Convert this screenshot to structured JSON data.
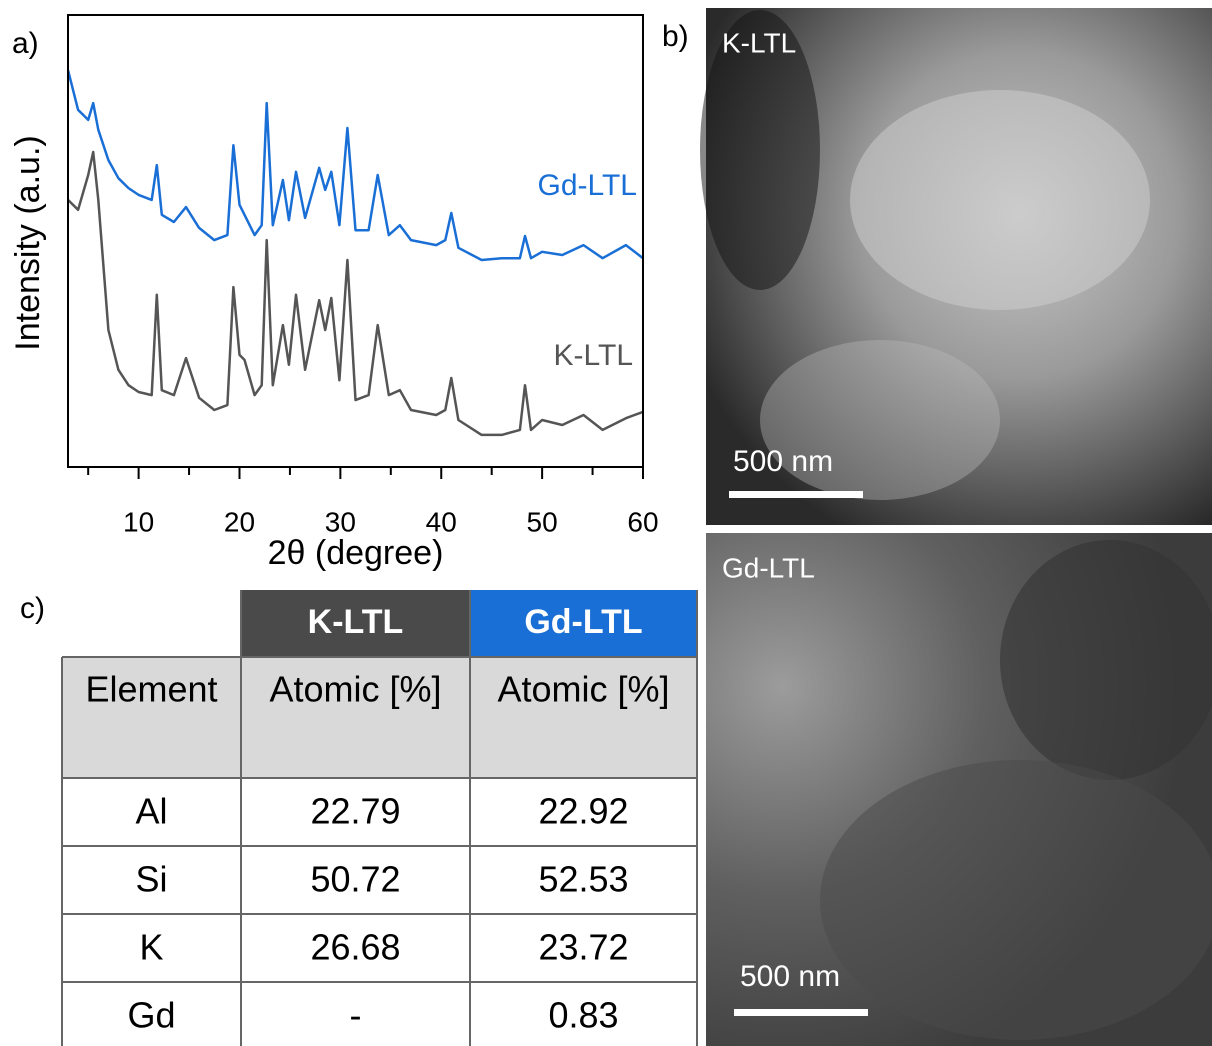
{
  "panels": {
    "a": "a)",
    "b": "b)",
    "c": "c)"
  },
  "chart_data": {
    "type": "line",
    "x_label": "2θ (degree)",
    "y_label": "Intensity (a.u.)",
    "x": [
      3,
      4,
      5,
      5.5,
      6,
      7,
      8,
      9,
      10,
      11.3,
      11.8,
      12.3,
      13.5,
      14.7,
      16,
      17.5,
      18.8,
      19.4,
      20,
      20.5,
      21.5,
      22.2,
      22.7,
      23.3,
      24.3,
      24.9,
      25.6,
      26.5,
      27.9,
      28.5,
      29.1,
      29.9,
      30.7,
      31.5,
      32.8,
      33.7,
      34.8,
      35.9,
      37,
      39.5,
      40.4,
      41,
      41.7,
      44,
      46,
      47.8,
      48.3,
      48.9,
      50,
      52,
      54.1,
      56,
      58.3,
      60
    ],
    "series": [
      {
        "name": "Gd-LTL",
        "color": "#1a6fd6",
        "values": [
          87.8,
          79.0,
          76.8,
          80.5,
          74.6,
          67.9,
          63.9,
          61.7,
          60.2,
          59.1,
          66.8,
          55.8,
          54.2,
          57.5,
          52.9,
          50.2,
          51.3,
          71.2,
          58.0,
          55.8,
          51.3,
          53.5,
          80.5,
          53.5,
          63.5,
          54.6,
          65.3,
          55.1,
          66.2,
          61.3,
          65.3,
          53.5,
          75.0,
          52.4,
          52.4,
          64.6,
          51.3,
          53.5,
          50.2,
          49.1,
          50.2,
          56.2,
          48.5,
          45.8,
          46.2,
          46.2,
          51.1,
          46.2,
          47.6,
          46.9,
          49.1,
          46.2,
          49.1,
          46.2
        ]
      },
      {
        "name": "K-LTL",
        "color": "#555555",
        "values": [
          59.1,
          56.9,
          64.6,
          69.7,
          59.1,
          30.3,
          21.5,
          18.1,
          16.6,
          15.9,
          38.1,
          17.0,
          15.9,
          24.1,
          15.3,
          12.6,
          13.7,
          39.8,
          24.8,
          23.7,
          15.9,
          18.1,
          50.2,
          18.1,
          31.4,
          22.6,
          38.1,
          21.5,
          36.9,
          30.3,
          37.4,
          19.2,
          45.8,
          14.8,
          15.9,
          31.4,
          15.9,
          17.0,
          12.6,
          11.5,
          12.6,
          19.7,
          10.4,
          7.1,
          7.1,
          8.2,
          18.1,
          8.2,
          10.4,
          9.3,
          11.5,
          8.2,
          10.8,
          12.2
        ]
      }
    ],
    "xlim": [
      3,
      60
    ],
    "xticks": [
      10,
      20,
      30,
      40,
      50,
      60
    ],
    "xminor_ticks": [
      5,
      15,
      25,
      35,
      45,
      55
    ],
    "ylim": [
      0,
      100
    ]
  },
  "images": [
    {
      "label": "K-LTL",
      "scale_bar": "500 nm"
    },
    {
      "label": "Gd-LTL",
      "scale_bar": "500 nm"
    }
  ],
  "table": {
    "header": [
      "K-LTL",
      "Gd-LTL"
    ],
    "columns": [
      "Element",
      "Atomic [%]",
      "Atomic [%]"
    ],
    "rows": [
      [
        "Al",
        22.79,
        22.92
      ],
      [
        "Si",
        50.72,
        52.53
      ],
      [
        "K",
        26.68,
        23.72
      ],
      [
        "Gd",
        "-",
        0.83
      ]
    ]
  }
}
